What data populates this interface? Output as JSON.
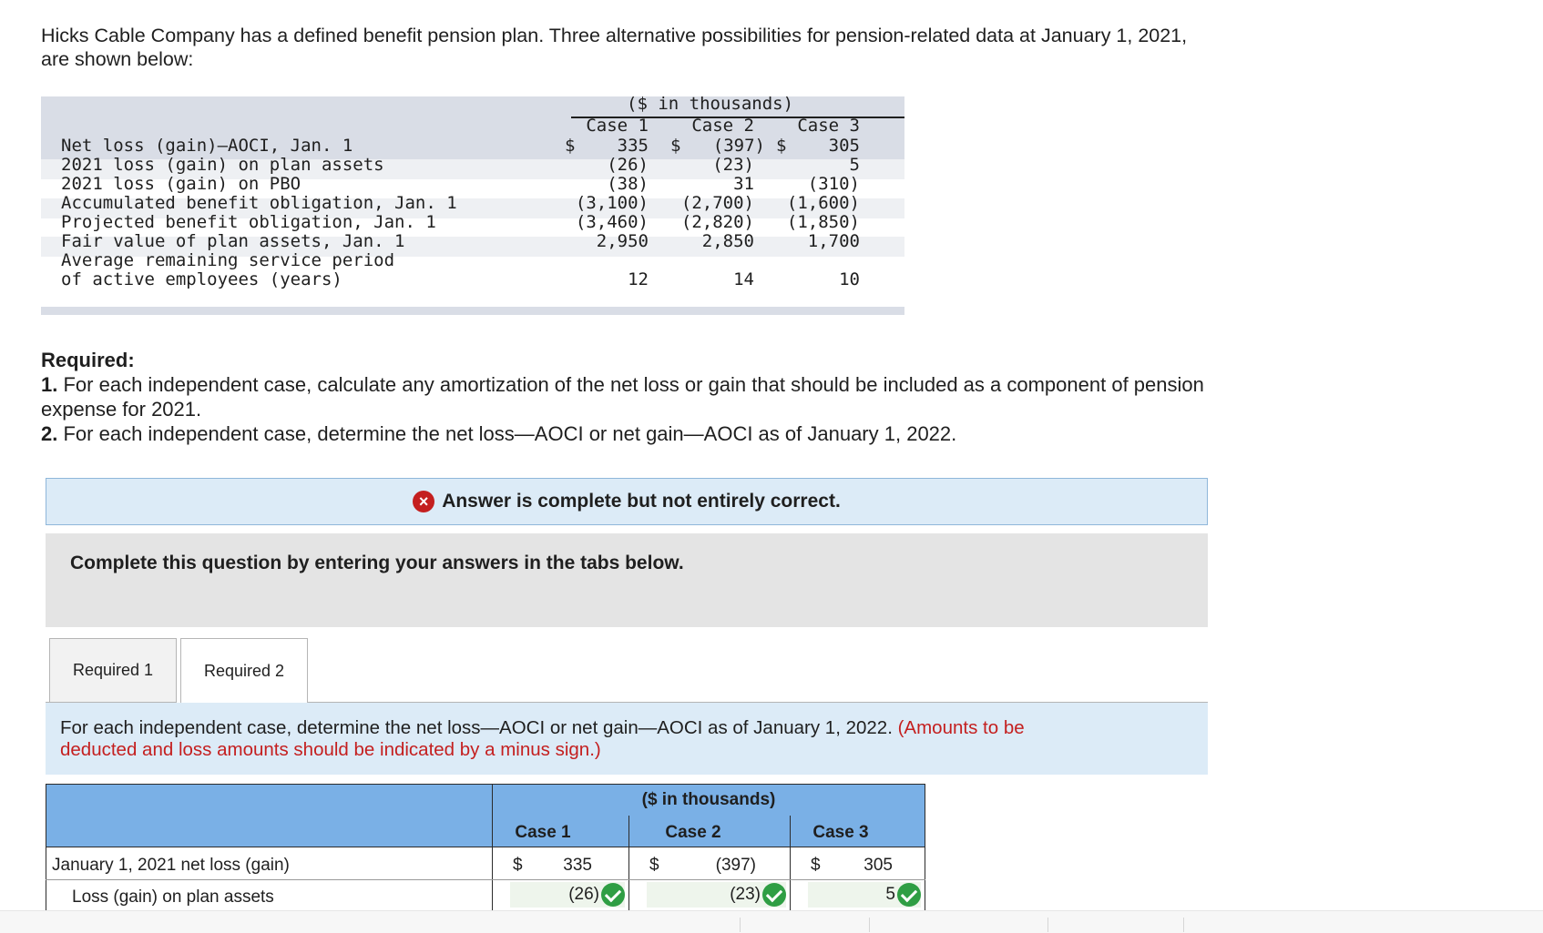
{
  "intro": {
    "line1": "Hicks Cable Company has a defined benefit pension plan. Three alternative possibilities for pension-related data at January 1, 2021,",
    "line2": "are shown below:"
  },
  "given_table": {
    "unit_header": "($ in thousands)",
    "columns": [
      "Case 1",
      "Case 2",
      "Case 3"
    ],
    "rows": [
      {
        "label": "Net loss (gain)—AOCI, Jan. 1",
        "values": [
          "335",
          "(397)",
          "305"
        ],
        "dollar": true
      },
      {
        "label": "2021 loss (gain) on plan assets",
        "values": [
          "(26)",
          "(23)",
          "5"
        ]
      },
      {
        "label": "2021 loss (gain) on PBO",
        "values": [
          "(38)",
          "31",
          "(310)"
        ]
      },
      {
        "label": "Accumulated benefit obligation, Jan. 1",
        "values": [
          "(3,100)",
          "(2,700)",
          "(1,600)"
        ]
      },
      {
        "label": "Projected benefit obligation, Jan. 1",
        "values": [
          "(3,460)",
          "(2,820)",
          "(1,850)"
        ]
      },
      {
        "label": "Fair value of plan assets, Jan. 1",
        "values": [
          "2,950",
          "2,850",
          "1,700"
        ]
      },
      {
        "label": "Average remaining service period",
        "label2": "of active employees (years)",
        "values": [
          "12",
          "14",
          "10"
        ]
      }
    ],
    "currency": "$"
  },
  "required": {
    "title": "Required:",
    "item1_num": "1.",
    "item1": "For each independent case, calculate any amortization of the net loss or gain that should be included as a component of pension",
    "item1b": "expense for 2021.",
    "item2_num": "2.",
    "item2": "For each independent case, determine the net loss—AOCI or net gain—AOCI as of January 1, 2022."
  },
  "result_banner": {
    "icon": "x-circle-icon",
    "text": "Answer is complete but not entirely correct.",
    "color": "#c41f1f"
  },
  "complete_prompt": "Complete this question by entering your answers in the tabs below.",
  "tabs": [
    {
      "label": "Required 1",
      "active": false
    },
    {
      "label": "Required 2",
      "active": true
    }
  ],
  "instruction": {
    "text": "For each independent case, determine the net loss—AOCI or net gain—AOCI as of January 1, 2022.",
    "note": "(Amounts to be",
    "note2": "deducted and loss amounts should be indicated by a minus sign.)"
  },
  "answer_table": {
    "unit_header": "($ in thousands)",
    "columns": [
      "Case 1",
      "Case 2",
      "Case 3"
    ],
    "currency": "$",
    "rows": [
      {
        "label": "January 1, 2021 net loss (gain)",
        "values": [
          "335",
          "(397)",
          "305"
        ]
      },
      {
        "label": "Loss (gain) on plan assets",
        "values": [
          "(26)",
          "(23)",
          "5"
        ],
        "correct": [
          true,
          true,
          true
        ]
      }
    ]
  },
  "colors": {
    "header_blue": "#7ab0e6",
    "banner_blue": "#dcebf7",
    "error_red": "#c41f1f",
    "check_green": "#2f9e44"
  }
}
